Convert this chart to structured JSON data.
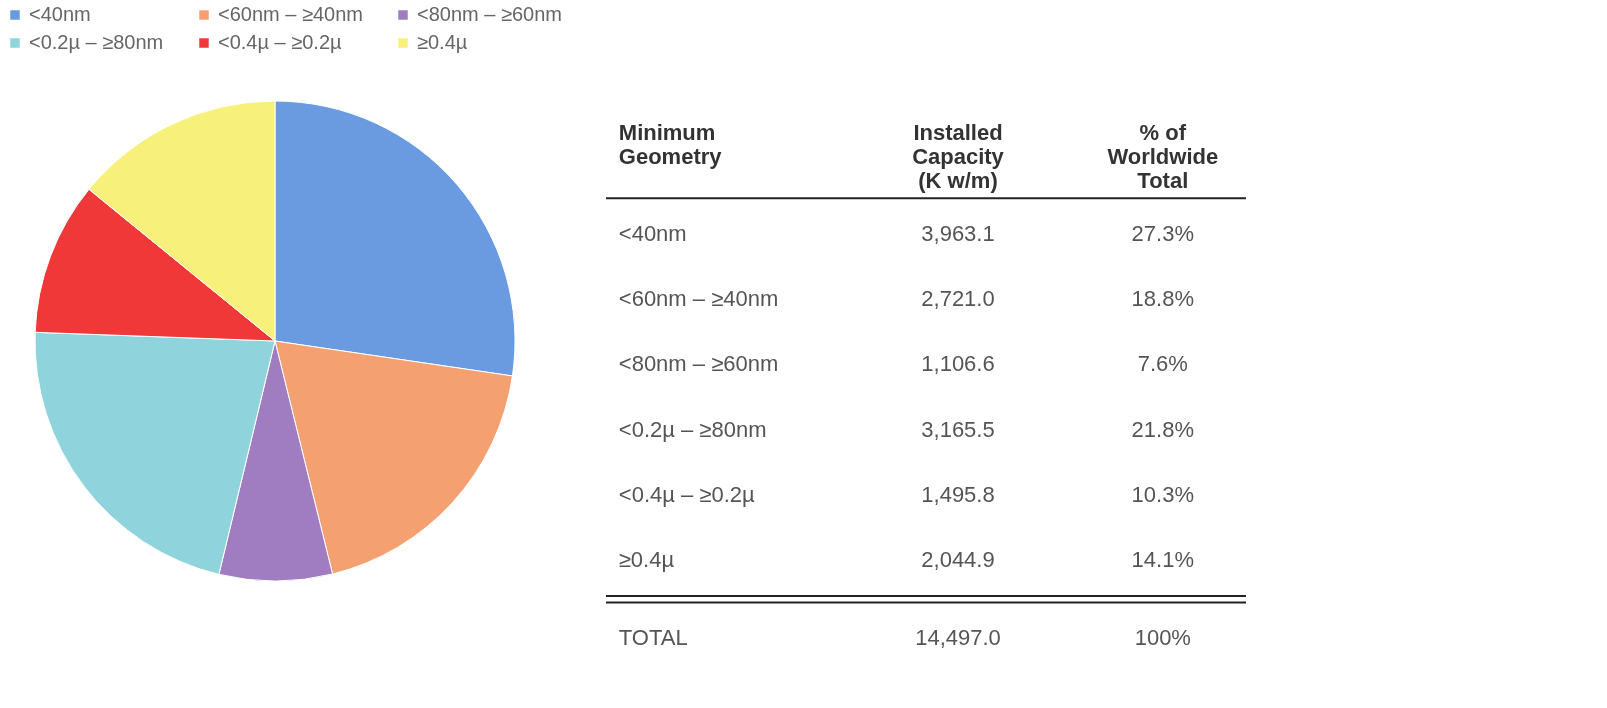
{
  "chart_data": {
    "type": "pie",
    "categories": [
      "<40nm",
      "<60nm – ≥40nm",
      "<80nm – ≥60nm",
      "<0.2µ – ≥80nm",
      "<0.4µ – ≥0.2µ",
      "≥0.4µ"
    ],
    "values": [
      27.3,
      18.8,
      7.6,
      21.8,
      10.3,
      14.1
    ],
    "colors": [
      "#6a9be0",
      "#f4a070",
      "#a07cc0",
      "#8fd3dc",
      "#f03838",
      "#f7f07a"
    ],
    "annotations": [
      "Minimum\nGeometry",
      "Installed\nCapacity\n(K w/m)",
      "% of\nWorldwide\nTotal",
      "TOTAL",
      "14,497.0",
      "100%",
      "3,963.1",
      "2,721.0",
      "1,106.6",
      "3,165.5",
      "1,495.8",
      "2,044.9",
      "27.3%",
      "18.8%",
      "7.6%",
      "21.8%",
      "10.3%",
      "14.1%"
    ],
    "legend": "top left"
  }
}
